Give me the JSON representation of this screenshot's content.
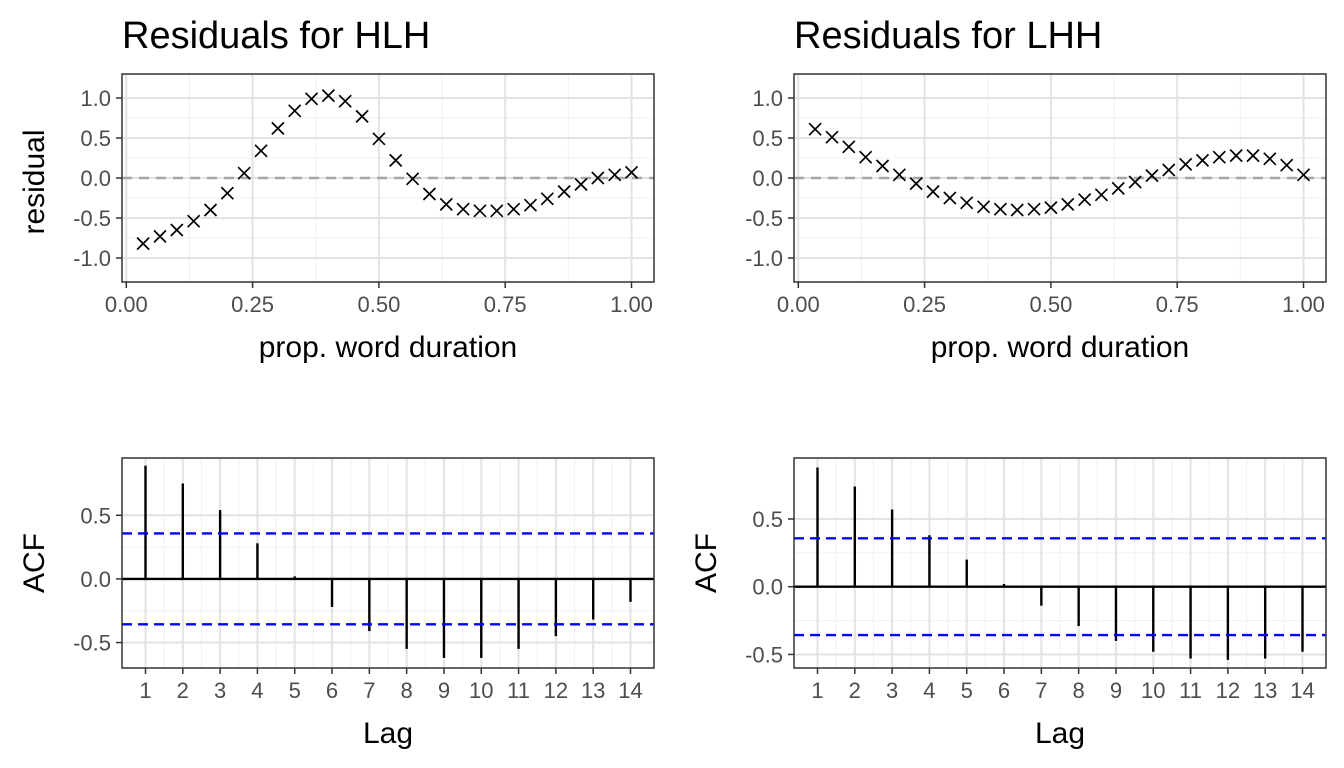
{
  "chart_data": [
    {
      "type": "scatter",
      "title": "Residuals for HLH",
      "xlabel": "prop. word duration",
      "ylabel": "residual",
      "xlim": [
        -0.0085,
        1.0445
      ],
      "ylim": [
        -1.3,
        1.3
      ],
      "xticks": [
        0,
        0.25,
        0.5,
        0.75,
        1
      ],
      "xtick_labels": [
        "0.00",
        "0.25",
        "0.50",
        "0.75",
        "1.00"
      ],
      "yticks": [
        -1,
        -0.5,
        0,
        0.5,
        1
      ],
      "ytick_labels": [
        "-1.0",
        "-0.5",
        "0.0",
        "0.5",
        "1.0"
      ],
      "marker": "x",
      "reference_line": 0,
      "grid": true,
      "x": [
        0.0333,
        0.0667,
        0.1,
        0.1333,
        0.1667,
        0.2,
        0.2333,
        0.2667,
        0.3,
        0.3333,
        0.3667,
        0.4,
        0.4333,
        0.4667,
        0.5,
        0.5333,
        0.5667,
        0.6,
        0.6333,
        0.6667,
        0.7,
        0.7333,
        0.7667,
        0.8,
        0.8333,
        0.8667,
        0.9,
        0.9333,
        0.9667,
        1.0
      ],
      "y": [
        -0.82,
        -0.73,
        -0.65,
        -0.54,
        -0.4,
        -0.19,
        0.06,
        0.34,
        0.62,
        0.84,
        0.99,
        1.03,
        0.96,
        0.77,
        0.49,
        0.22,
        -0.01,
        -0.2,
        -0.33,
        -0.39,
        -0.41,
        -0.41,
        -0.39,
        -0.34,
        -0.26,
        -0.17,
        -0.08,
        0.0,
        0.04,
        0.07
      ]
    },
    {
      "type": "scatter",
      "title": "Residuals for LHH",
      "xlabel": "prop. word duration",
      "ylabel": "",
      "xlim": [
        -0.0085,
        1.0445
      ],
      "ylim": [
        -1.3,
        1.3
      ],
      "xticks": [
        0,
        0.25,
        0.5,
        0.75,
        1
      ],
      "xtick_labels": [
        "0.00",
        "0.25",
        "0.50",
        "0.75",
        "1.00"
      ],
      "yticks": [
        -1,
        -0.5,
        0,
        0.5,
        1
      ],
      "ytick_labels": [
        "-1.0",
        "-0.5",
        "0.0",
        "0.5",
        "1.0"
      ],
      "marker": "x",
      "reference_line": 0,
      "grid": true,
      "x": [
        0.0333,
        0.0667,
        0.1,
        0.1333,
        0.1667,
        0.2,
        0.2333,
        0.2667,
        0.3,
        0.3333,
        0.3667,
        0.4,
        0.4333,
        0.4667,
        0.5,
        0.5333,
        0.5667,
        0.6,
        0.6333,
        0.6667,
        0.7,
        0.7333,
        0.7667,
        0.8,
        0.8333,
        0.8667,
        0.9,
        0.9333,
        0.9667,
        1.0
      ],
      "y": [
        0.61,
        0.51,
        0.39,
        0.26,
        0.15,
        0.04,
        -0.07,
        -0.17,
        -0.25,
        -0.31,
        -0.36,
        -0.39,
        -0.4,
        -0.39,
        -0.37,
        -0.33,
        -0.27,
        -0.21,
        -0.13,
        -0.05,
        0.03,
        0.1,
        0.17,
        0.22,
        0.26,
        0.28,
        0.28,
        0.24,
        0.16,
        0.04
      ]
    },
    {
      "type": "bar",
      "subtype": "acf",
      "xlabel": "Lag",
      "ylabel": "ACF",
      "xlim": [
        0.37,
        14.63
      ],
      "ylim": [
        -0.7,
        0.95
      ],
      "xticks": [
        1,
        2,
        3,
        4,
        5,
        6,
        7,
        8,
        9,
        10,
        11,
        12,
        13,
        14
      ],
      "xtick_labels": [
        "1",
        "2",
        "3",
        "4",
        "5",
        "6",
        "7",
        "8",
        "9",
        "10",
        "11",
        "12",
        "13",
        "14"
      ],
      "yticks": [
        -0.5,
        0,
        0.5
      ],
      "ytick_labels": [
        "-0.5",
        "0.0",
        "0.5"
      ],
      "categories": [
        1,
        2,
        3,
        4,
        5,
        6,
        7,
        8,
        9,
        10,
        11,
        12,
        13,
        14
      ],
      "values": [
        0.89,
        0.75,
        0.54,
        0.28,
        0.02,
        -0.22,
        -0.41,
        -0.55,
        -0.62,
        -0.62,
        -0.55,
        -0.45,
        -0.32,
        -0.18
      ],
      "confidence_band": [
        -0.357,
        0.357
      ],
      "confidence_color": "#0000ff",
      "grid": true
    },
    {
      "type": "bar",
      "subtype": "acf",
      "xlabel": "Lag",
      "ylabel": "ACF",
      "xlim": [
        0.37,
        14.63
      ],
      "ylim": [
        -0.6,
        0.95
      ],
      "xticks": [
        1,
        2,
        3,
        4,
        5,
        6,
        7,
        8,
        9,
        10,
        11,
        12,
        13,
        14
      ],
      "xtick_labels": [
        "1",
        "2",
        "3",
        "4",
        "5",
        "6",
        "7",
        "8",
        "9",
        "10",
        "11",
        "12",
        "13",
        "14"
      ],
      "yticks": [
        -0.5,
        0,
        0.5
      ],
      "ytick_labels": [
        "-0.5",
        "0.0",
        "0.5"
      ],
      "categories": [
        1,
        2,
        3,
        4,
        5,
        6,
        7,
        8,
        9,
        10,
        11,
        12,
        13,
        14
      ],
      "values": [
        0.88,
        0.74,
        0.57,
        0.38,
        0.2,
        0.02,
        -0.14,
        -0.29,
        -0.4,
        -0.48,
        -0.53,
        -0.54,
        -0.53,
        -0.48
      ],
      "confidence_band": [
        -0.357,
        0.357
      ],
      "confidence_color": "#0000ff",
      "grid": true
    }
  ]
}
